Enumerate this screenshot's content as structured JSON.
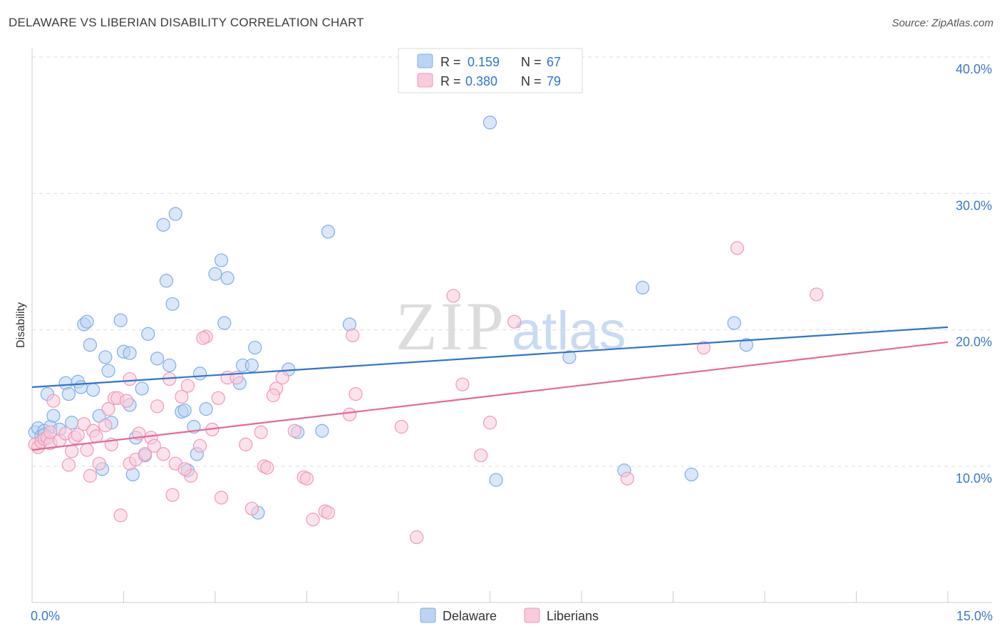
{
  "header": {
    "title": "DELAWARE VS LIBERIAN DISABILITY CORRELATION CHART",
    "source": "Source: ZipAtlas.com"
  },
  "watermark": {
    "zip": "ZIP",
    "atlas": "atlas"
  },
  "chart_data": {
    "type": "scatter",
    "title": "DELAWARE VS LIBERIAN DISABILITY CORRELATION CHART",
    "xlabel": "",
    "ylabel": "Disability",
    "xlim": [
      0,
      15
    ],
    "ylim": [
      0,
      41.5
    ],
    "x_tick_labels": [
      {
        "value": 0,
        "label": "0.0%"
      },
      {
        "value": 15,
        "label": "15.0%"
      }
    ],
    "y_tick_labels": [
      {
        "value": 10,
        "label": "10.0%"
      },
      {
        "value": 20,
        "label": "20.0%"
      },
      {
        "value": 30,
        "label": "30.0%"
      },
      {
        "value": 40,
        "label": "40.0%"
      }
    ],
    "legend": {
      "placement": "top-center",
      "rows": [
        {
          "r_label": "R =",
          "r_value": "0.159",
          "n_label": "N =",
          "n_value": "67"
        },
        {
          "r_label": "R =",
          "r_value": "0.380",
          "n_label": "N =",
          "n_value": "79"
        }
      ]
    },
    "bottom_legend": [
      "Delaware",
      "Liberians"
    ],
    "series": [
      {
        "name": "Delaware",
        "color": "#7eaee8",
        "fill": "#bcd4f3",
        "line_color": "#2f74d0",
        "trend": {
          "x": [
            0,
            15
          ],
          "y": [
            15.8,
            20.2
          ]
        },
        "points": [
          [
            0.05,
            12.5
          ],
          [
            0.1,
            12.8
          ],
          [
            0.15,
            12.2
          ],
          [
            0.2,
            12.6
          ],
          [
            0.25,
            15.3
          ],
          [
            0.3,
            12.9
          ],
          [
            0.35,
            13.7
          ],
          [
            0.45,
            12.7
          ],
          [
            0.55,
            16.1
          ],
          [
            0.6,
            15.3
          ],
          [
            0.65,
            13.2
          ],
          [
            0.75,
            16.2
          ],
          [
            0.8,
            15.8
          ],
          [
            0.85,
            20.4
          ],
          [
            0.9,
            20.6
          ],
          [
            0.95,
            18.9
          ],
          [
            1.0,
            15.6
          ],
          [
            1.1,
            13.7
          ],
          [
            1.15,
            9.8
          ],
          [
            1.2,
            18.0
          ],
          [
            1.25,
            17.0
          ],
          [
            1.3,
            13.2
          ],
          [
            1.45,
            20.7
          ],
          [
            1.5,
            18.4
          ],
          [
            1.6,
            18.3
          ],
          [
            1.6,
            14.5
          ],
          [
            1.65,
            9.4
          ],
          [
            1.7,
            12.1
          ],
          [
            1.8,
            15.7
          ],
          [
            1.85,
            10.8
          ],
          [
            1.9,
            19.7
          ],
          [
            2.05,
            17.9
          ],
          [
            2.15,
            27.7
          ],
          [
            2.2,
            23.6
          ],
          [
            2.25,
            17.4
          ],
          [
            2.3,
            21.9
          ],
          [
            2.35,
            28.5
          ],
          [
            2.45,
            14.0
          ],
          [
            2.5,
            14.1
          ],
          [
            2.55,
            9.7
          ],
          [
            2.65,
            12.9
          ],
          [
            2.7,
            10.9
          ],
          [
            2.75,
            16.8
          ],
          [
            2.85,
            14.2
          ],
          [
            3.0,
            24.1
          ],
          [
            3.1,
            25.1
          ],
          [
            3.15,
            20.5
          ],
          [
            3.2,
            23.8
          ],
          [
            3.4,
            16.1
          ],
          [
            3.45,
            17.4
          ],
          [
            3.6,
            17.4
          ],
          [
            3.7,
            6.6
          ],
          [
            3.65,
            18.7
          ],
          [
            4.2,
            17.1
          ],
          [
            4.35,
            12.5
          ],
          [
            4.75,
            12.6
          ],
          [
            4.85,
            27.2
          ],
          [
            5.2,
            20.4
          ],
          [
            7.5,
            35.2
          ],
          [
            7.6,
            9.0
          ],
          [
            8.8,
            18.0
          ],
          [
            9.7,
            9.7
          ],
          [
            10.0,
            23.1
          ],
          [
            10.8,
            9.4
          ],
          [
            11.5,
            20.5
          ],
          [
            11.7,
            18.9
          ],
          [
            0.2,
            12.3
          ]
        ]
      },
      {
        "name": "Liberians",
        "color": "#ee9ab8",
        "fill": "#f9cadb",
        "line_color": "#e4689a",
        "trend": {
          "x": [
            0,
            15
          ],
          "y": [
            11.2,
            19.1
          ]
        },
        "points": [
          [
            0.05,
            11.6
          ],
          [
            0.1,
            11.4
          ],
          [
            0.15,
            11.8
          ],
          [
            0.2,
            12.0
          ],
          [
            0.25,
            12.1
          ],
          [
            0.3,
            11.7
          ],
          [
            0.35,
            14.8
          ],
          [
            0.45,
            11.9
          ],
          [
            0.55,
            12.4
          ],
          [
            0.6,
            10.1
          ],
          [
            0.65,
            11.1
          ],
          [
            0.7,
            12.1
          ],
          [
            0.75,
            12.3
          ],
          [
            0.85,
            13.1
          ],
          [
            0.9,
            11.2
          ],
          [
            0.95,
            9.3
          ],
          [
            1.0,
            12.6
          ],
          [
            1.05,
            12.2
          ],
          [
            1.1,
            10.2
          ],
          [
            1.2,
            13.0
          ],
          [
            1.25,
            14.2
          ],
          [
            1.35,
            15.0
          ],
          [
            1.4,
            15.0
          ],
          [
            1.45,
            6.4
          ],
          [
            1.55,
            14.8
          ],
          [
            1.6,
            16.4
          ],
          [
            1.6,
            10.2
          ],
          [
            1.7,
            10.5
          ],
          [
            1.75,
            12.4
          ],
          [
            1.85,
            10.9
          ],
          [
            1.95,
            12.1
          ],
          [
            2.0,
            11.5
          ],
          [
            2.05,
            14.4
          ],
          [
            2.15,
            10.9
          ],
          [
            2.25,
            16.4
          ],
          [
            2.3,
            7.9
          ],
          [
            2.35,
            10.2
          ],
          [
            2.45,
            15.1
          ],
          [
            2.55,
            15.9
          ],
          [
            2.6,
            9.3
          ],
          [
            2.75,
            11.5
          ],
          [
            2.85,
            19.5
          ],
          [
            2.95,
            12.7
          ],
          [
            3.05,
            15.0
          ],
          [
            3.1,
            7.7
          ],
          [
            3.2,
            16.5
          ],
          [
            3.35,
            16.5
          ],
          [
            3.5,
            11.6
          ],
          [
            3.6,
            6.9
          ],
          [
            3.75,
            12.5
          ],
          [
            3.8,
            10.0
          ],
          [
            3.85,
            9.9
          ],
          [
            4.0,
            15.7
          ],
          [
            4.1,
            16.5
          ],
          [
            4.3,
            12.6
          ],
          [
            4.45,
            9.2
          ],
          [
            4.5,
            9.1
          ],
          [
            4.6,
            6.1
          ],
          [
            4.8,
            6.7
          ],
          [
            4.85,
            6.6
          ],
          [
            5.2,
            13.8
          ],
          [
            5.3,
            15.3
          ],
          [
            5.25,
            19.6
          ],
          [
            6.05,
            12.9
          ],
          [
            6.9,
            22.5
          ],
          [
            7.05,
            16.0
          ],
          [
            7.35,
            10.8
          ],
          [
            7.5,
            13.2
          ],
          [
            7.9,
            20.6
          ],
          [
            9.75,
            9.1
          ],
          [
            11.0,
            18.7
          ],
          [
            11.55,
            26.0
          ],
          [
            12.85,
            22.6
          ],
          [
            6.3,
            4.8
          ],
          [
            2.8,
            19.4
          ],
          [
            3.95,
            15.2
          ],
          [
            1.3,
            11.6
          ],
          [
            2.5,
            9.8
          ],
          [
            0.3,
            12.5
          ]
        ]
      }
    ]
  }
}
